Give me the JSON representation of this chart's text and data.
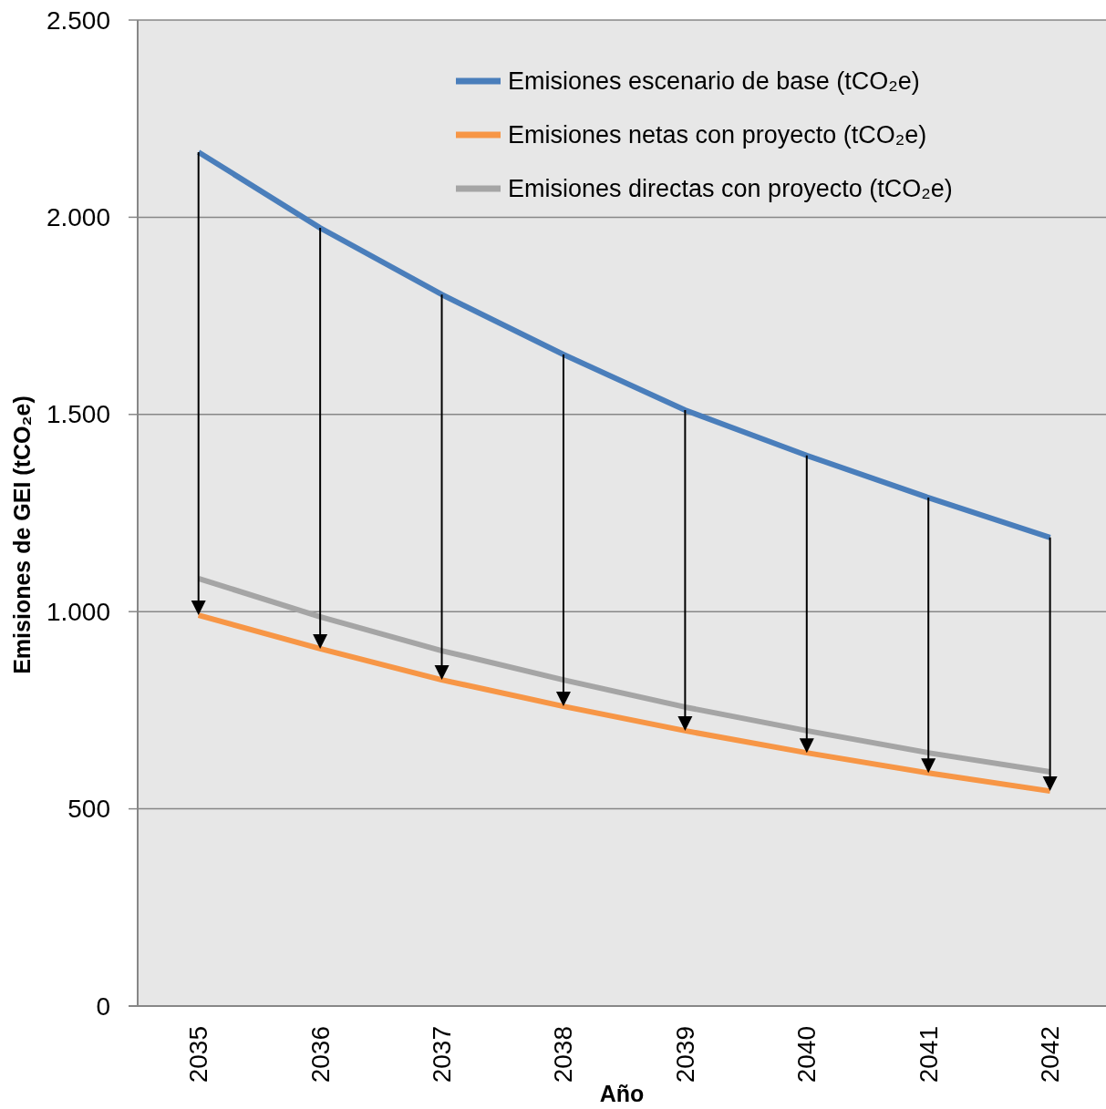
{
  "chart_data": {
    "type": "line",
    "xlabel": "Año",
    "ylabel": "Emisiones de GEI (tCO₂e)",
    "categories": [
      "2035",
      "2036",
      "2037",
      "2038",
      "2039",
      "2040",
      "2041",
      "2042"
    ],
    "series": [
      {
        "name": "Emisiones escenario de base (tCO₂e)",
        "color": "#4a7ebb",
        "values": [
          2165,
          1973,
          1804,
          1652,
          1511,
          1396,
          1289,
          1188
        ]
      },
      {
        "name": "Emisiones netas con proyecto (tCO₂e)",
        "color": "#f79646",
        "values": [
          991,
          906,
          827,
          760,
          698,
          642,
          591,
          545
        ]
      },
      {
        "name": "Emisiones directas con proyecto (tCO₂e)",
        "color": "#a5a5a5",
        "values": [
          1084,
          987,
          901,
          827,
          758,
          698,
          642,
          594
        ]
      }
    ],
    "ylim": [
      0,
      2500
    ],
    "yticks": [
      0,
      500,
      {
        "value": 1000,
        "label": "1.000"
      },
      {
        "value": 1500,
        "label": "1.500"
      },
      {
        "value": 2000,
        "label": "2.000"
      },
      {
        "value": 2500,
        "label": "2.500"
      }
    ],
    "grid": "y",
    "legend": "top right"
  }
}
